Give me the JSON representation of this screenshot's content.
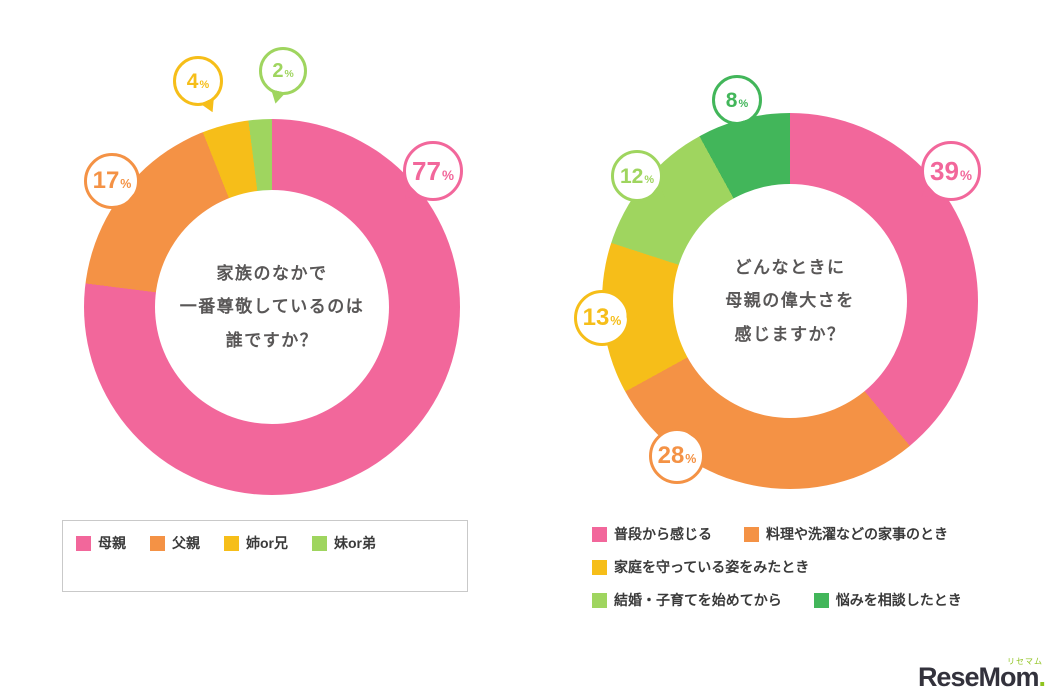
{
  "page": {
    "background": "#ffffff"
  },
  "chart_data": [
    {
      "type": "pie",
      "variant": "donut",
      "title": "家族のなかで一番尊敬しているのは誰ですか？",
      "title_lines": [
        "家族のなかで",
        "一番尊敬しているのは",
        "誰ですか？"
      ],
      "categories": [
        "母親",
        "父親",
        "姉or兄",
        "妹or弟"
      ],
      "values": [
        77,
        17,
        4,
        2
      ],
      "unit": "%",
      "colors": [
        "#f2679b",
        "#f49245",
        "#f6be19",
        "#9fd55f"
      ],
      "start_angle_deg": 0,
      "direction": "clockwise",
      "legend_position": "bottom"
    },
    {
      "type": "pie",
      "variant": "donut",
      "title": "どんなときに母親の偉大さを感じますか？",
      "title_lines": [
        "どんなときに",
        "母親の偉大さを",
        "感じますか？"
      ],
      "categories": [
        "普段から感じる",
        "料理や洗濯などの家事のとき",
        "家庭を守っている姿をみたとき",
        "結婚・子育てを始めてから",
        "悩みを相談したとき"
      ],
      "values": [
        39,
        28,
        13,
        12,
        8
      ],
      "unit": "%",
      "colors": [
        "#f2679b",
        "#f49245",
        "#f6be19",
        "#9fd55f",
        "#42b65a"
      ],
      "start_angle_deg": 0,
      "direction": "clockwise",
      "legend_position": "bottom"
    }
  ],
  "footer": {
    "logo_text": "ReseMom",
    "logo_dot": ".",
    "logo_kana": "リセマム"
  }
}
